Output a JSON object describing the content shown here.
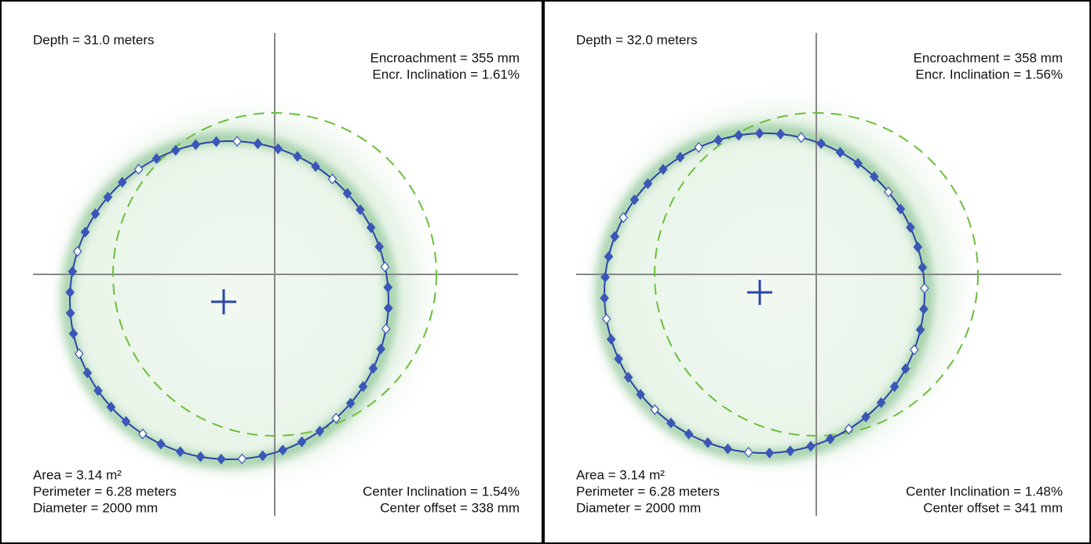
{
  "panels": [
    {
      "depth": "Depth = 31.0 meters",
      "encroachment": "Encroachment = 355 mm",
      "encr_inclination": "Encr. Inclination = 1.61%",
      "area": "Area = 3.14 m²",
      "perimeter": "Perimeter = 6.28 meters",
      "diameter": "Diameter = 2000 mm",
      "center_inclination": "Center Inclination = 1.54%",
      "center_offset": "Center offset = 338 mm"
    },
    {
      "depth": "Depth = 32.0 meters",
      "encroachment": "Encroachment = 358 mm",
      "encr_inclination": "Encr. Inclination = 1.56%",
      "area": "Area = 3.14 m²",
      "perimeter": "Perimeter = 6.28 meters",
      "diameter": "Diameter = 2000 mm",
      "center_inclination": "Center Inclination = 1.48%",
      "center_offset": "Center offset = 341 mm"
    }
  ]
}
